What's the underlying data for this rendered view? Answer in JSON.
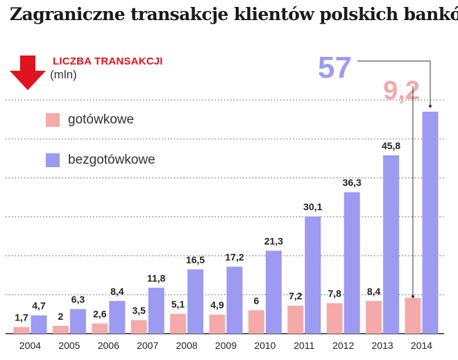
{
  "title": "Zagraniczne transakcje klientów polskich banków",
  "unit": {
    "label": "LICZBA TRANSAKCJI",
    "sub": "(mln)",
    "icon": "down-arrow-icon"
  },
  "colors": {
    "cash": "#f4aaa8",
    "cashless": "#9d9af2",
    "accent": "#e0141e",
    "grid": "#555555"
  },
  "chart_data": {
    "type": "bar",
    "categories": [
      "2004",
      "2005",
      "2006",
      "2007",
      "2008",
      "2009",
      "2010",
      "2011",
      "2012",
      "2013",
      "2014"
    ],
    "series": [
      {
        "name": "gotówkowe",
        "values": [
          1.7,
          2,
          2.6,
          3.5,
          5.1,
          4.9,
          6,
          7.2,
          7.8,
          8.4,
          9.2
        ],
        "labels": [
          "1,7",
          "2",
          "2,6",
          "3,5",
          "5,1",
          "4,9",
          "6",
          "7,2",
          "7,8",
          "8,4",
          "9,2"
        ]
      },
      {
        "name": "bezgotówkowe",
        "values": [
          4.7,
          6.3,
          8.4,
          11.8,
          16.5,
          17.2,
          21.3,
          30.1,
          36.3,
          45.8,
          57
        ],
        "labels": [
          "4,7",
          "6,3",
          "8,4",
          "11,8",
          "16,5",
          "17,2",
          "21,3",
          "30,1",
          "36,3",
          "45,8",
          "57"
        ]
      }
    ],
    "ylim": [
      0,
      60
    ],
    "grid": true,
    "legend": "top-left",
    "highlight_last": true
  }
}
